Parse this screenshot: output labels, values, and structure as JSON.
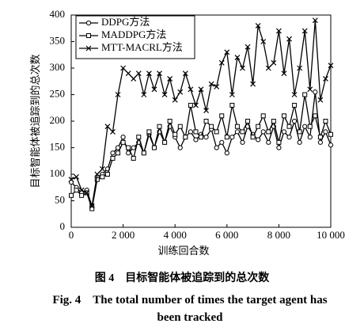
{
  "chart_data": {
    "type": "line",
    "y_label": "目标智能体被追踪到的总次数",
    "x_label": "训练回合数",
    "caption_cn": "图 4　目标智能体被追踪到的总次数",
    "caption_en": "Fig. 4　The total number of times the target agent has been tracked",
    "x": [
      0,
      200,
      400,
      600,
      800,
      1000,
      1200,
      1400,
      1600,
      1800,
      2000,
      2200,
      2400,
      2600,
      2800,
      3000,
      3200,
      3400,
      3600,
      3800,
      4000,
      4200,
      4400,
      4600,
      4800,
      5000,
      5200,
      5400,
      5600,
      5800,
      6000,
      6200,
      6400,
      6600,
      6800,
      7000,
      7200,
      7400,
      7600,
      7800,
      8000,
      8200,
      8400,
      8600,
      8800,
      9000,
      9200,
      9400,
      9600,
      9800,
      10000
    ],
    "series": [
      {
        "name": "DDPG方法",
        "color": "#000000",
        "marker": "circle",
        "values": [
          85,
          75,
          65,
          70,
          40,
          95,
          100,
          110,
          140,
          150,
          170,
          140,
          150,
          160,
          140,
          175,
          150,
          180,
          160,
          190,
          170,
          150,
          170,
          180,
          165,
          175,
          170,
          185,
          150,
          160,
          140,
          170,
          180,
          160,
          190,
          175,
          165,
          180,
          160,
          190,
          150,
          180,
          170,
          200,
          160,
          190,
          170,
          255,
          160,
          180,
          155
        ]
      },
      {
        "name": "MADDPG方法",
        "color": "#000000",
        "marker": "square",
        "values": [
          60,
          70,
          60,
          65,
          35,
          90,
          95,
          100,
          130,
          140,
          160,
          150,
          130,
          170,
          140,
          180,
          150,
          190,
          160,
          200,
          175,
          190,
          170,
          230,
          180,
          170,
          200,
          190,
          180,
          210,
          170,
          230,
          190,
          180,
          200,
          170,
          190,
          210,
          180,
          200,
          160,
          210,
          190,
          230,
          180,
          250,
          190,
          210,
          170,
          200,
          175
        ]
      },
      {
        "name": "MTT-MACRL方法",
        "color": "#000000",
        "marker": "cross",
        "values": [
          90,
          95,
          70,
          65,
          40,
          100,
          110,
          190,
          180,
          250,
          300,
          290,
          280,
          290,
          250,
          290,
          260,
          290,
          250,
          280,
          240,
          255,
          290,
          260,
          230,
          260,
          220,
          270,
          265,
          310,
          330,
          250,
          320,
          300,
          340,
          270,
          380,
          350,
          300,
          310,
          370,
          290,
          355,
          250,
          300,
          370,
          260,
          390,
          240,
          280,
          305
        ]
      }
    ],
    "xlim": [
      0,
      10000
    ],
    "xticks": [
      0,
      {
        "value": 2000,
        "label": "2 000"
      },
      {
        "value": 4000,
        "label": "4 000"
      },
      {
        "value": 6000,
        "label": "6 000"
      },
      {
        "value": 8000,
        "label": "8 000"
      },
      {
        "value": 10000,
        "label": "10 000"
      }
    ],
    "ylim": [
      0,
      400
    ],
    "yticks": [
      0,
      50,
      100,
      150,
      200,
      250,
      300,
      350,
      400
    ],
    "legend": "upper left"
  }
}
